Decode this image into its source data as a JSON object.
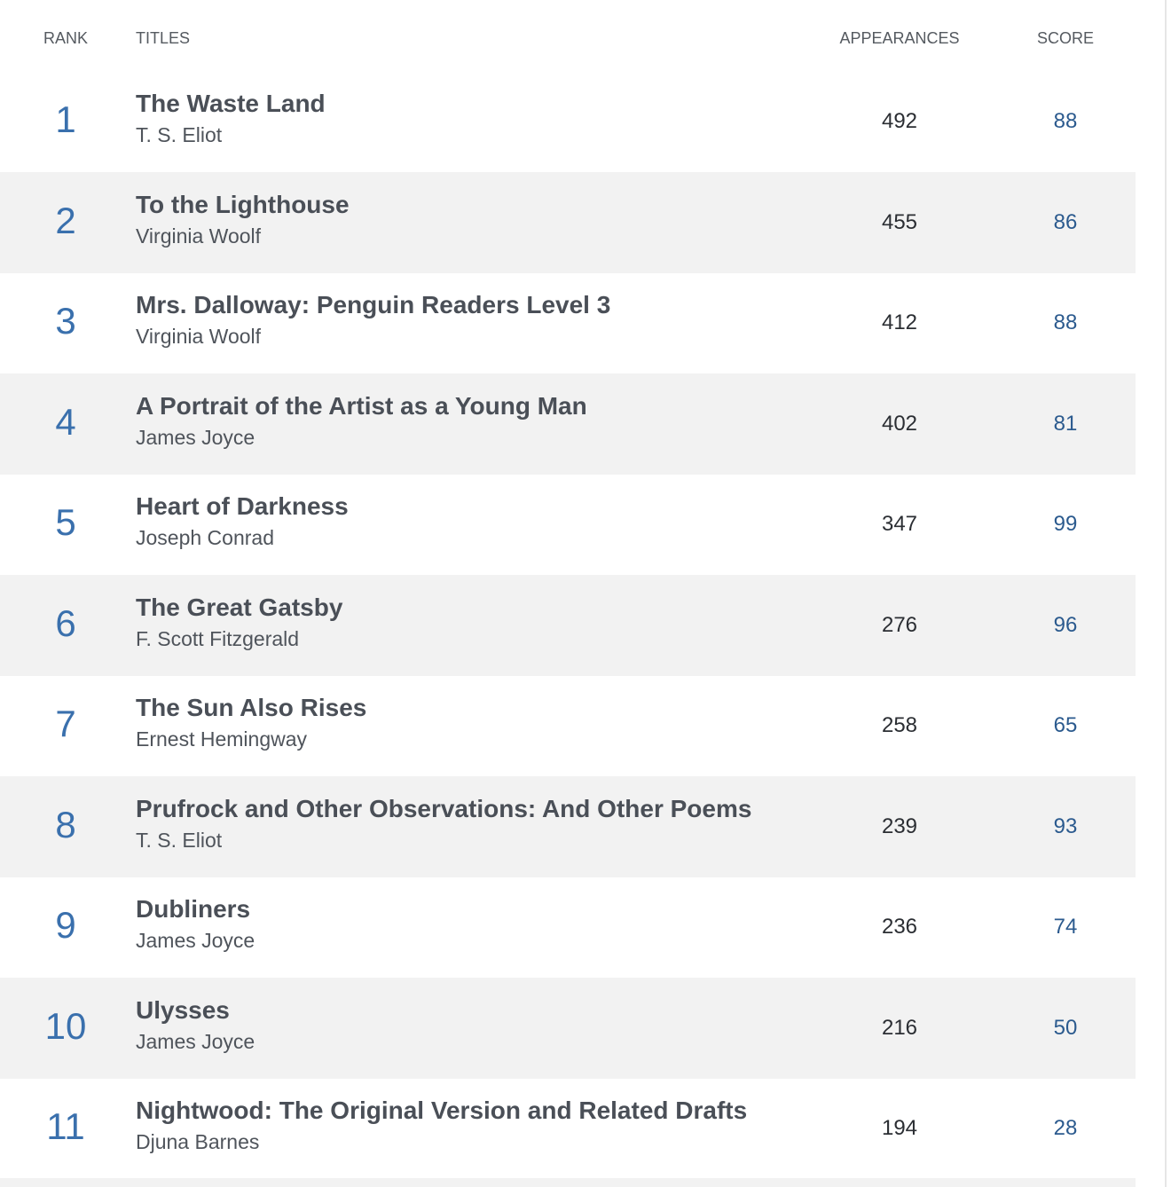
{
  "header": {
    "rank": "RANK",
    "titles": "TITLES",
    "appearances": "APPEARANCES",
    "score": "SCORE"
  },
  "table": {
    "rows": [
      {
        "rank": 1,
        "title": "The Waste Land",
        "author": "T. S. Eliot",
        "appearances": 492,
        "score": 88
      },
      {
        "rank": 2,
        "title": "To the Lighthouse",
        "author": "Virginia Woolf",
        "appearances": 455,
        "score": 86
      },
      {
        "rank": 3,
        "title": "Mrs. Dalloway: Penguin Readers Level 3",
        "author": "Virginia Woolf",
        "appearances": 412,
        "score": 88
      },
      {
        "rank": 4,
        "title": "A Portrait of the Artist as a Young Man",
        "author": "James Joyce",
        "appearances": 402,
        "score": 81
      },
      {
        "rank": 5,
        "title": "Heart of Darkness",
        "author": "Joseph Conrad",
        "appearances": 347,
        "score": 99
      },
      {
        "rank": 6,
        "title": "The Great Gatsby",
        "author": "F. Scott Fitzgerald",
        "appearances": 276,
        "score": 96
      },
      {
        "rank": 7,
        "title": "The Sun Also Rises",
        "author": "Ernest Hemingway",
        "appearances": 258,
        "score": 65
      },
      {
        "rank": 8,
        "title": "Prufrock and Other Observations: And Other Poems",
        "author": "T. S. Eliot",
        "appearances": 239,
        "score": 93
      },
      {
        "rank": 9,
        "title": "Dubliners",
        "author": "James Joyce",
        "appearances": 236,
        "score": 74
      },
      {
        "rank": 10,
        "title": "Ulysses",
        "author": "James Joyce",
        "appearances": 216,
        "score": 50
      },
      {
        "rank": 11,
        "title": "Nightwood: The Original Version and Related Drafts",
        "author": "Djuna Barnes",
        "appearances": 194,
        "score": 28
      }
    ]
  }
}
